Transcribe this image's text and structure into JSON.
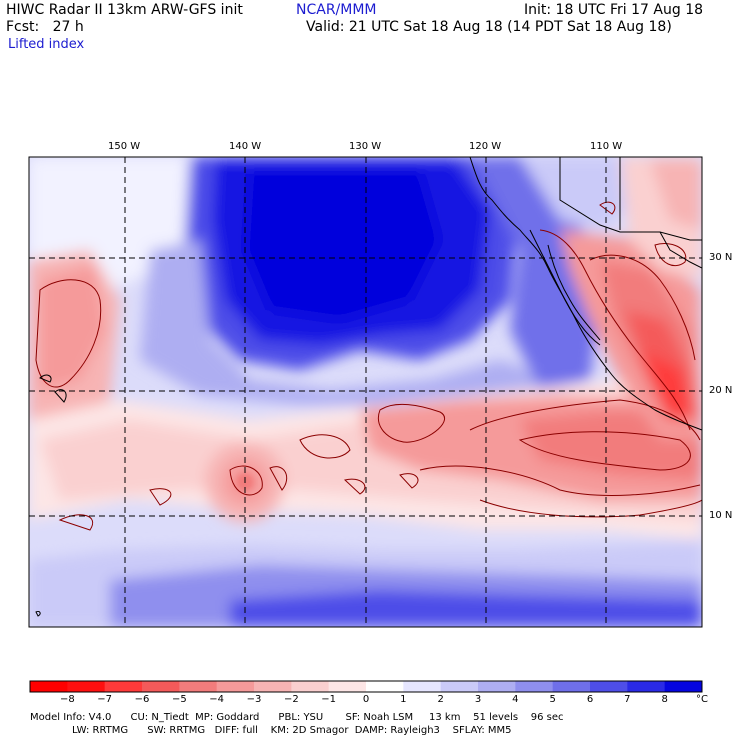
{
  "header": {
    "title_left": "HIWC Radar II 13km ARW-GFS init",
    "org": "NCAR/MMM",
    "init": "Init: 18 UTC Fri 17 Aug 18",
    "fcst": "Fcst:   27 h",
    "valid": "Valid: 21 UTC Sat 18 Aug 18 (14 PDT Sat 18 Aug 18)",
    "field": "Lifted index"
  },
  "map": {
    "lon_labels": [
      "150 W",
      "140 W",
      "130 W",
      "120 W",
      "110 W"
    ],
    "lat_labels": [
      "30 N",
      "20 N",
      "10 N"
    ]
  },
  "colorbar": {
    "labels": [
      "−8",
      "−7",
      "−6",
      "−5",
      "−4",
      "−3",
      "−2",
      "−1",
      "0",
      "1",
      "2",
      "3",
      "4",
      "5",
      "6",
      "7",
      "8"
    ],
    "unit": "°C",
    "colors": [
      "#ff1010",
      "#ff3a3a",
      "#f45a5a",
      "#f27c7c",
      "#f59a9a",
      "#f7b4b4",
      "#fad0d0",
      "#fde6e6",
      "#ffffff",
      "#e6e6ff",
      "#cacaf8",
      "#aeaef2",
      "#8f8fee",
      "#6f6fea",
      "#4e4ee8",
      "#2a2ae6",
      "#0505e0"
    ]
  },
  "info": {
    "line1": "Model Info: V4.0      CU: N_Tiedt  MP: Goddard      PBL: YSU       SF: Noah LSM     13 km    51 levels    96 sec",
    "line2": "LW: RRTMG      SW: RRTMG   DIFF: full    KM: 2D Smagor  DAMP: Rayleigh3    SFLAY: MM5"
  }
}
